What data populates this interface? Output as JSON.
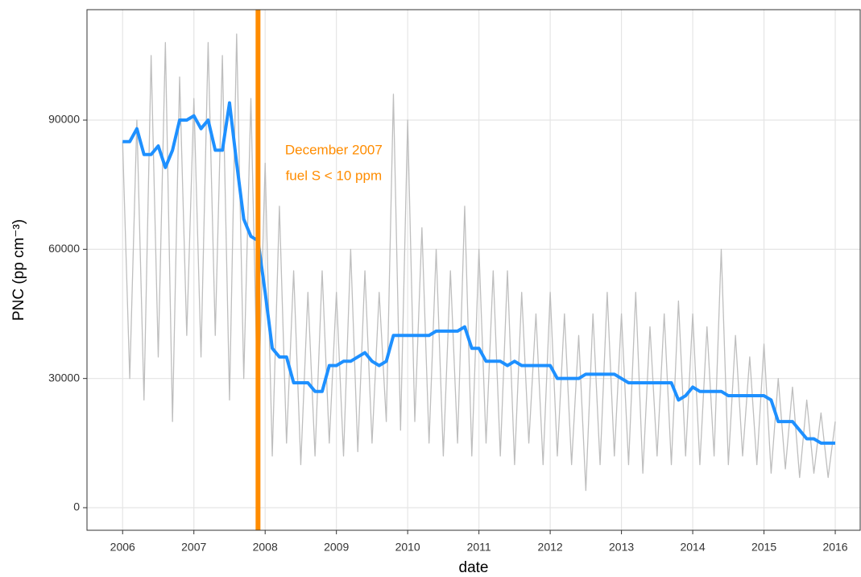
{
  "chart_data": {
    "type": "line",
    "x_label": "date",
    "y_label": "PNC (pp cm⁻³)",
    "xlim": [
      2005.5,
      2016.35
    ],
    "ylim": [
      -5240,
      115640
    ],
    "xticks": [
      2006,
      2007,
      2008,
      2009,
      2010,
      2011,
      2012,
      2013,
      2014,
      2015,
      2016
    ],
    "yticks": [
      0,
      30000,
      60000,
      90000
    ],
    "grid": true,
    "x": [
      2006.0,
      2006.1,
      2006.2,
      2006.3,
      2006.4,
      2006.5,
      2006.6,
      2006.7,
      2006.8,
      2006.9,
      2007.0,
      2007.1,
      2007.2,
      2007.3,
      2007.4,
      2007.5,
      2007.6,
      2007.7,
      2007.8,
      2007.9,
      2008.0,
      2008.1,
      2008.2,
      2008.3,
      2008.4,
      2008.5,
      2008.6,
      2008.7,
      2008.8,
      2008.9,
      2009.0,
      2009.1,
      2009.2,
      2009.3,
      2009.4,
      2009.5,
      2009.6,
      2009.7,
      2009.8,
      2009.9,
      2010.0,
      2010.1,
      2010.2,
      2010.3,
      2010.4,
      2010.5,
      2010.6,
      2010.7,
      2010.8,
      2010.9,
      2011.0,
      2011.1,
      2011.2,
      2011.3,
      2011.4,
      2011.5,
      2011.6,
      2011.7,
      2011.8,
      2011.9,
      2012.0,
      2012.1,
      2012.2,
      2012.3,
      2012.4,
      2012.5,
      2012.6,
      2012.7,
      2012.8,
      2012.9,
      2013.0,
      2013.1,
      2013.2,
      2013.3,
      2013.4,
      2013.5,
      2013.6,
      2013.7,
      2013.8,
      2013.9,
      2014.0,
      2014.1,
      2014.2,
      2014.3,
      2014.4,
      2014.5,
      2014.6,
      2014.7,
      2014.8,
      2014.9,
      2015.0,
      2015.1,
      2015.2,
      2015.3,
      2015.4,
      2015.5,
      2015.6,
      2015.7,
      2015.8,
      2015.9,
      2016.0
    ],
    "series": [
      {
        "color": "#bebebe",
        "values": [
          85000,
          30000,
          90000,
          25000,
          105000,
          35000,
          108000,
          20000,
          100000,
          40000,
          95000,
          35000,
          108000,
          40000,
          105000,
          25000,
          110000,
          30000,
          95000,
          20000,
          80000,
          12000,
          70000,
          15000,
          55000,
          10000,
          50000,
          12000,
          55000,
          15000,
          50000,
          12000,
          60000,
          13000,
          55000,
          15000,
          50000,
          20000,
          96000,
          18000,
          90000,
          20000,
          65000,
          15000,
          60000,
          12000,
          55000,
          15000,
          70000,
          12000,
          60000,
          15000,
          55000,
          12000,
          55000,
          10000,
          50000,
          15000,
          45000,
          10000,
          50000,
          12000,
          45000,
          10000,
          40000,
          4000,
          45000,
          10000,
          50000,
          12000,
          45000,
          10000,
          50000,
          8000,
          42000,
          12000,
          45000,
          10000,
          48000,
          12000,
          45000,
          10000,
          42000,
          12000,
          60000,
          10000,
          40000,
          12000,
          35000,
          10000,
          38000,
          8000,
          30000,
          9000,
          28000,
          7000,
          25000,
          8000,
          22000,
          7000,
          20000
        ]
      },
      {
        "color": "#1e90ff",
        "values": [
          85000,
          85000,
          88000,
          82000,
          82000,
          84000,
          79000,
          83000,
          90000,
          90000,
          91000,
          88000,
          90000,
          83000,
          83000,
          94000,
          80000,
          67000,
          63000,
          62000,
          50000,
          37000,
          35000,
          35000,
          29000,
          29000,
          29000,
          27000,
          27000,
          33000,
          33000,
          34000,
          34000,
          35000,
          36000,
          34000,
          33000,
          34000,
          40000,
          40000,
          40000,
          40000,
          40000,
          40000,
          41000,
          41000,
          41000,
          41000,
          42000,
          37000,
          37000,
          34000,
          34000,
          34000,
          33000,
          34000,
          33000,
          33000,
          33000,
          33000,
          33000,
          30000,
          30000,
          30000,
          30000,
          31000,
          31000,
          31000,
          31000,
          31000,
          30000,
          29000,
          29000,
          29000,
          29000,
          29000,
          29000,
          29000,
          25000,
          26000,
          28000,
          27000,
          27000,
          27000,
          27000,
          26000,
          26000,
          26000,
          26000,
          26000,
          26000,
          25000,
          20000,
          20000,
          20000,
          18000,
          16000,
          16000,
          15000,
          15000,
          15000
        ]
      }
    ],
    "vline": {
      "x": 2007.9,
      "color": "#ff8c00"
    },
    "annotation": {
      "lines": [
        "December 2007",
        "fuel S < 10 ppm"
      ],
      "color": "#ff8c00"
    }
  }
}
